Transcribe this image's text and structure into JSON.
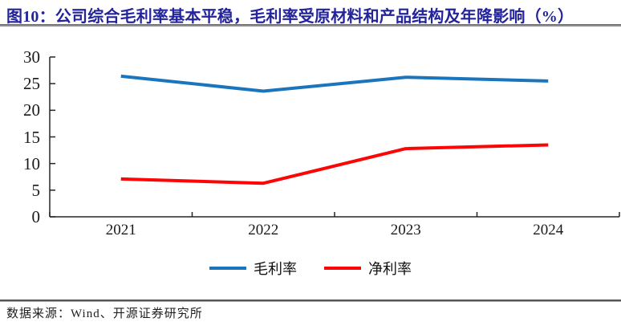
{
  "figure": {
    "title": "图10：公司综合毛利率基本平稳，毛利率受原材料和产品结构及年降影响（%）",
    "source": "数据来源：Wind、开源证券研究所"
  },
  "colors": {
    "title_text": "#23239B",
    "axis": "#262626",
    "title_rule": "#8C8C8C",
    "bottom_rule": "#555555",
    "gross_margin_line": "#1B75BC",
    "net_margin_line": "#FB0505"
  },
  "chart_data": {
    "type": "line",
    "categories": [
      "2021",
      "2022",
      "2023",
      "2024"
    ],
    "series": [
      {
        "name": "毛利率",
        "color": "#1B75BC",
        "values": [
          26.4,
          23.6,
          26.2,
          25.5
        ]
      },
      {
        "name": "净利率",
        "color": "#FB0505",
        "values": [
          7.1,
          6.3,
          12.8,
          13.5
        ]
      }
    ],
    "title": "公司综合毛利率基本平稳，毛利率受原材料和产品结构及年降影响（%）",
    "xlabel": "",
    "ylabel": "",
    "ylim": [
      0,
      30
    ],
    "yticks": [
      0,
      5,
      10,
      15,
      20,
      25,
      30
    ],
    "grid": false,
    "legend_position": "bottom"
  }
}
